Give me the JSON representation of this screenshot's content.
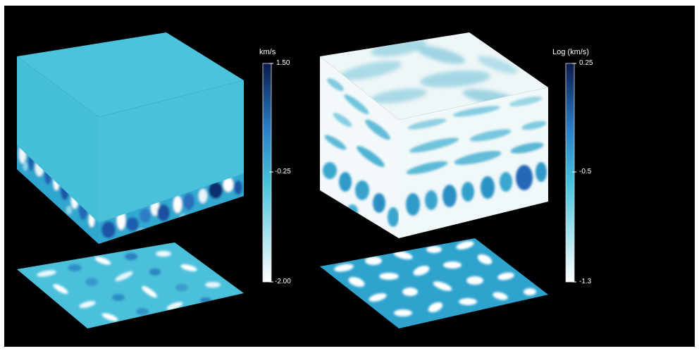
{
  "panels": [
    {
      "id": "velocity",
      "colorbar": {
        "unit_label": "km/s",
        "ticks": [
          "1.50",
          "-0.25",
          "-2.00"
        ],
        "colors": [
          "#0b1a4a",
          "#2a7fc8",
          "#46c3dc",
          "#ffffff"
        ]
      },
      "cube_top_color": "#4cc3dd"
    },
    {
      "id": "log-velocity",
      "colorbar": {
        "unit_label": "Log (km/s)",
        "ticks": [
          "0.25",
          "-0.5",
          "-1.3"
        ],
        "colors": [
          "#0b1a4a",
          "#2a7fc8",
          "#46c3dc",
          "#ffffff"
        ]
      },
      "cube_top_color": "#eef6f7"
    }
  ]
}
